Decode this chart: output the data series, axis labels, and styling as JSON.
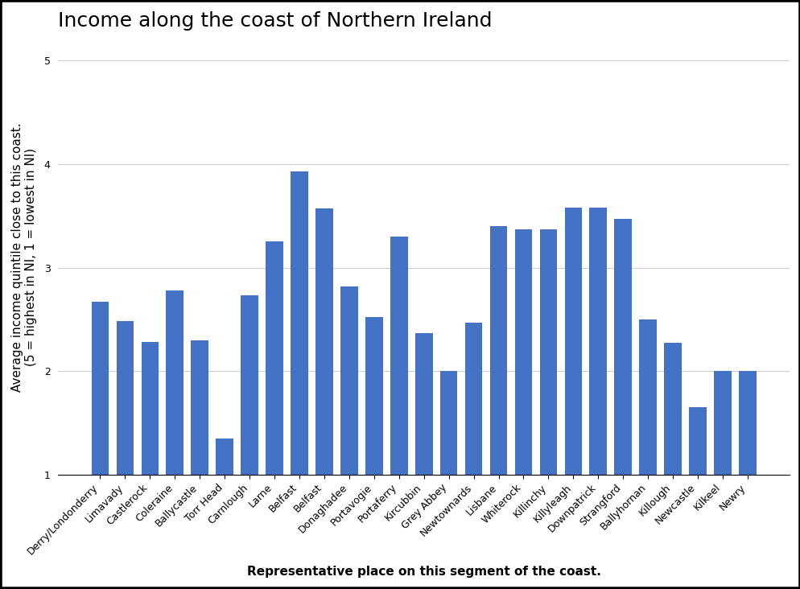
{
  "title": "Income along the coast of Northern Ireland",
  "xlabel": "Representative place on this segment of the coast.",
  "ylabel": "Average income quintile close to this coast.\n(5 = highest in NI, 1 = lowest in NI)",
  "categories": [
    "Derry/Londonderry",
    "Limavady",
    "Castlerock",
    "Coleraine",
    "Ballycastle",
    "Torr Head",
    "Carnlough",
    "Larne",
    "Belfast",
    "Belfast",
    "Donaghadee",
    "Portavogie",
    "Portaferry",
    "Kircubbin",
    "Grey Abbey",
    "Newtownards",
    "Lisbane",
    "Whiterock",
    "Killinchy",
    "Killyleagh",
    "Downpatrick",
    "Strangford",
    "Ballyhornan",
    "Killough",
    "Newcastle",
    "Kilkeel",
    "Newry"
  ],
  "values": [
    2.67,
    2.48,
    2.28,
    2.78,
    2.3,
    1.35,
    2.73,
    3.25,
    3.93,
    3.57,
    2.82,
    2.52,
    3.3,
    2.37,
    2.0,
    2.47,
    3.4,
    3.37,
    3.37,
    3.58,
    3.58,
    3.47,
    2.5,
    2.27,
    1.65,
    2.0,
    2.0
  ],
  "bar_color": "#4472c4",
  "bar_bottom": 1.0,
  "ylim": [
    1,
    5.2
  ],
  "yticks": [
    1,
    2,
    3,
    4,
    5
  ],
  "background_color": "#ffffff",
  "border_color": "#000000",
  "title_fontsize": 18,
  "axis_label_fontsize": 11,
  "tick_fontsize": 9
}
